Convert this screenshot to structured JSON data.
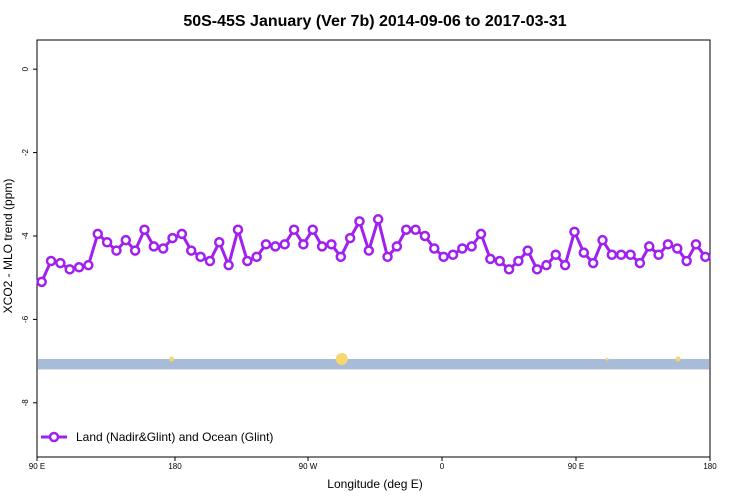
{
  "chart_data": {
    "type": "line",
    "title": "50S-45S January (Ver 7b)   2014-09-06 to 2017-03-31",
    "xlabel": "Longitude (deg E)",
    "ylabel": "XCO2 - MLO trend (ppm)",
    "x_ticks": [
      "90 E",
      "180",
      "90 W",
      "0",
      "90 E",
      "180"
    ],
    "y_ticks": [
      "0",
      "-2",
      "-4",
      "-6",
      "-8"
    ],
    "xlim": [
      90,
      450
    ],
    "ylim": [
      -9.3,
      0.7
    ],
    "legend": "Land (Nadir&Glint) and Ocean (Glint)",
    "legend_position": "bottom-left",
    "series_color": "#a020f0",
    "band_color": "#a8bcd8",
    "band_range": [
      -7.2,
      -6.95
    ],
    "marker_color": "#f5d76e",
    "series": [
      {
        "name": "Land (Nadir&Glint) and Ocean (Glint)",
        "x": [
          92.5,
          97.5,
          102.5,
          107.5,
          112.5,
          117.5,
          122.5,
          127.5,
          132.5,
          137.5,
          142.5,
          147.5,
          152.5,
          157.5,
          162.5,
          167.5,
          172.5,
          177.5,
          182.5,
          187.5,
          192.5,
          197.5,
          202.5,
          207.5,
          212.5,
          217.5,
          222.5,
          227.5,
          232.5,
          237.5,
          242.5,
          247.5,
          252.5,
          257.5,
          262.5,
          267.5,
          272.5,
          277.5,
          282.5,
          287.5,
          292.5,
          297.5,
          302.5,
          307.5,
          312.5,
          317.5,
          322.5,
          327.5,
          332.5,
          337.5,
          342.5,
          347.5,
          352.5,
          357.5,
          362.5,
          367.5,
          372.5,
          377.5,
          382.5,
          387.5,
          392.5,
          397.5,
          402.5,
          407.5,
          412.5,
          417.5,
          422.5,
          427.5,
          432.5,
          437.5,
          442.5,
          447.5
        ],
        "values": [
          -5.1,
          -4.6,
          -4.65,
          -4.8,
          -4.75,
          -4.7,
          -3.95,
          -4.15,
          -4.35,
          -4.1,
          -4.35,
          -3.85,
          -4.25,
          -4.3,
          -4.05,
          -3.95,
          -4.35,
          -4.5,
          -4.6,
          -4.15,
          -4.7,
          -3.85,
          -4.6,
          -4.5,
          -4.2,
          -4.25,
          -4.2,
          -3.85,
          -4.2,
          -3.85,
          -4.25,
          -4.2,
          -4.5,
          -4.05,
          -3.65,
          -4.35,
          -3.6,
          -4.5,
          -4.25,
          -3.85,
          -3.85,
          -4.0,
          -4.3,
          -4.5,
          -4.45,
          -4.3,
          -4.25,
          -3.95,
          -4.55,
          -4.6,
          -4.8,
          -4.6,
          -4.35,
          -4.8,
          -4.7,
          -4.45,
          -4.7,
          -3.9,
          -4.4,
          -4.65,
          -4.1,
          -4.45,
          -4.45,
          -4.45,
          -4.65,
          -4.25,
          -4.45,
          -4.2,
          -4.3,
          -4.6,
          -4.2,
          -4.5
        ]
      }
    ]
  }
}
